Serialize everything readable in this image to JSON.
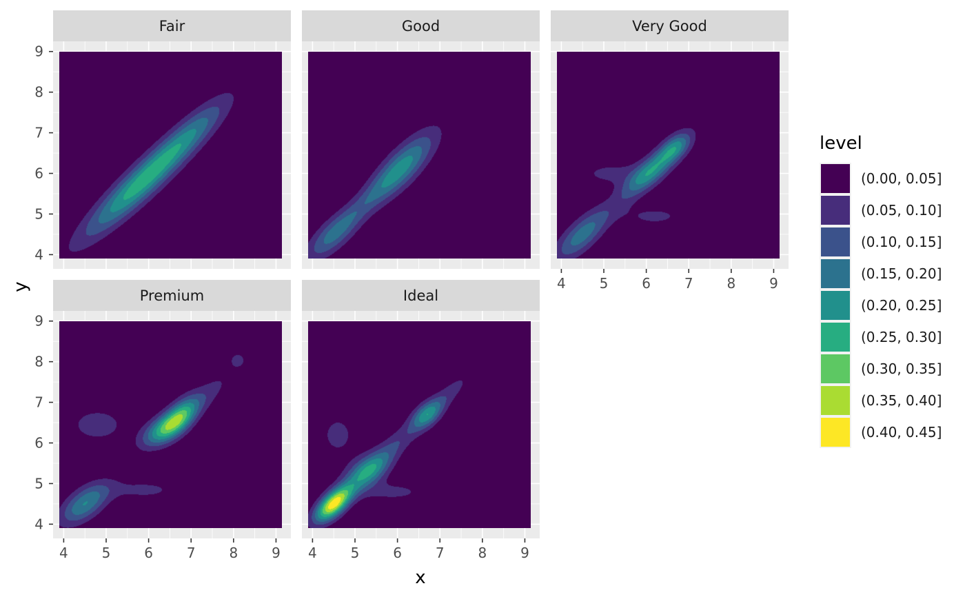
{
  "chart_data": {
    "type": "filled_density_2d_faceted",
    "xlabel": "x",
    "ylabel": "y",
    "xlim": [
      3.75,
      9.35
    ],
    "ylim": [
      3.65,
      9.25
    ],
    "x_ticks": [
      4,
      5,
      6,
      7,
      8,
      9
    ],
    "y_ticks": [
      4,
      5,
      6,
      7,
      8,
      9
    ],
    "grid": true,
    "facet_layout": {
      "ncol": 3,
      "nrow": 2
    },
    "raster_extent": {
      "x": [
        3.9,
        9.15
      ],
      "y": [
        3.9,
        9.0
      ]
    },
    "legend": {
      "title": "level",
      "position": "right",
      "levels": [
        {
          "label": "(0.00, 0.05]",
          "color": "#440154"
        },
        {
          "label": "(0.05, 0.10]",
          "color": "#472D7B"
        },
        {
          "label": "(0.10, 0.15]",
          "color": "#3B528B"
        },
        {
          "label": "(0.15, 0.20]",
          "color": "#2C728E"
        },
        {
          "label": "(0.20, 0.25]",
          "color": "#21908C"
        },
        {
          "label": "(0.25, 0.30]",
          "color": "#27AD81"
        },
        {
          "label": "(0.30, 0.35]",
          "color": "#5DC863"
        },
        {
          "label": "(0.35, 0.40]",
          "color": "#AADC32"
        },
        {
          "label": "(0.40, 0.45]",
          "color": "#FDE725"
        }
      ]
    },
    "panels": [
      {
        "name": "Fair",
        "row": 0,
        "col": 0,
        "show_x_axis": false,
        "show_y_axis": true,
        "peaks": [
          {
            "x": 5.9,
            "y": 5.85,
            "sx": 0.95,
            "sy": 0.95,
            "rho": 0.93,
            "amp": 0.285
          },
          {
            "x": 7.1,
            "y": 7.1,
            "sx": 0.6,
            "sy": 0.6,
            "rho": 0.85,
            "amp": 0.08
          }
        ]
      },
      {
        "name": "Good",
        "row": 0,
        "col": 1,
        "show_x_axis": false,
        "show_y_axis": false,
        "peaks": [
          {
            "x": 6.1,
            "y": 6.15,
            "sx": 0.55,
            "sy": 0.6,
            "rho": 0.8,
            "amp": 0.215
          },
          {
            "x": 4.5,
            "y": 4.5,
            "sx": 0.45,
            "sy": 0.45,
            "rho": 0.75,
            "amp": 0.16
          },
          {
            "x": 5.3,
            "y": 5.35,
            "sx": 0.55,
            "sy": 0.55,
            "rho": 0.9,
            "amp": 0.06
          }
        ]
      },
      {
        "name": "Very Good",
        "row": 0,
        "col": 2,
        "show_x_axis": true,
        "show_y_axis": false,
        "peaks": [
          {
            "x": 6.15,
            "y": 6.1,
            "sx": 0.5,
            "sy": 0.5,
            "rho": 0.85,
            "amp": 0.23
          },
          {
            "x": 4.5,
            "y": 4.5,
            "sx": 0.45,
            "sy": 0.45,
            "rho": 0.75,
            "amp": 0.18
          },
          {
            "x": 6.7,
            "y": 6.65,
            "sx": 0.25,
            "sy": 0.25,
            "rho": 0.5,
            "amp": 0.13
          },
          {
            "x": 5.2,
            "y": 6.0,
            "sx": 0.7,
            "sy": 0.25,
            "rho": 0.0,
            "amp": 0.06
          },
          {
            "x": 6.2,
            "y": 4.95,
            "sx": 0.6,
            "sy": 0.2,
            "rho": 0.0,
            "amp": 0.06
          }
        ]
      },
      {
        "name": "Premium",
        "row": 1,
        "col": 0,
        "show_x_axis": true,
        "show_y_axis": true,
        "peaks": [
          {
            "x": 4.5,
            "y": 4.5,
            "sx": 0.4,
            "sy": 0.35,
            "rho": 0.6,
            "amp": 0.2
          },
          {
            "x": 6.35,
            "y": 6.35,
            "sx": 0.35,
            "sy": 0.3,
            "rho": 0.6,
            "amp": 0.23
          },
          {
            "x": 6.75,
            "y": 6.65,
            "sx": 0.3,
            "sy": 0.35,
            "rho": 0.6,
            "amp": 0.22
          },
          {
            "x": 4.8,
            "y": 6.45,
            "sx": 0.55,
            "sy": 0.35,
            "rho": 0.0,
            "amp": 0.07
          },
          {
            "x": 5.9,
            "y": 4.85,
            "sx": 0.7,
            "sy": 0.2,
            "rho": 0.0,
            "amp": 0.06
          },
          {
            "x": 7.3,
            "y": 7.1,
            "sx": 0.5,
            "sy": 0.5,
            "rho": 0.85,
            "amp": 0.07
          },
          {
            "x": 8.1,
            "y": 8.05,
            "sx": 0.15,
            "sy": 0.15,
            "rho": 0.0,
            "amp": 0.06
          }
        ]
      },
      {
        "name": "Ideal",
        "row": 1,
        "col": 1,
        "show_x_axis": true,
        "show_y_axis": false,
        "peaks": [
          {
            "x": 4.5,
            "y": 4.5,
            "sx": 0.3,
            "sy": 0.3,
            "rho": 0.65,
            "amp": 0.43
          },
          {
            "x": 5.3,
            "y": 5.3,
            "sx": 0.35,
            "sy": 0.3,
            "rho": 0.5,
            "amp": 0.2
          },
          {
            "x": 6.7,
            "y": 6.7,
            "sx": 0.25,
            "sy": 0.25,
            "rho": 0.5,
            "amp": 0.19
          },
          {
            "x": 5.8,
            "y": 5.8,
            "sx": 0.6,
            "sy": 0.6,
            "rho": 0.9,
            "amp": 0.1
          },
          {
            "x": 4.6,
            "y": 6.2,
            "sx": 0.4,
            "sy": 0.5,
            "rho": 0.0,
            "amp": 0.06
          },
          {
            "x": 5.9,
            "y": 4.8,
            "sx": 0.7,
            "sy": 0.2,
            "rho": 0.0,
            "amp": 0.06
          },
          {
            "x": 7.2,
            "y": 7.2,
            "sx": 0.4,
            "sy": 0.4,
            "rho": 0.85,
            "amp": 0.07
          }
        ]
      }
    ]
  }
}
